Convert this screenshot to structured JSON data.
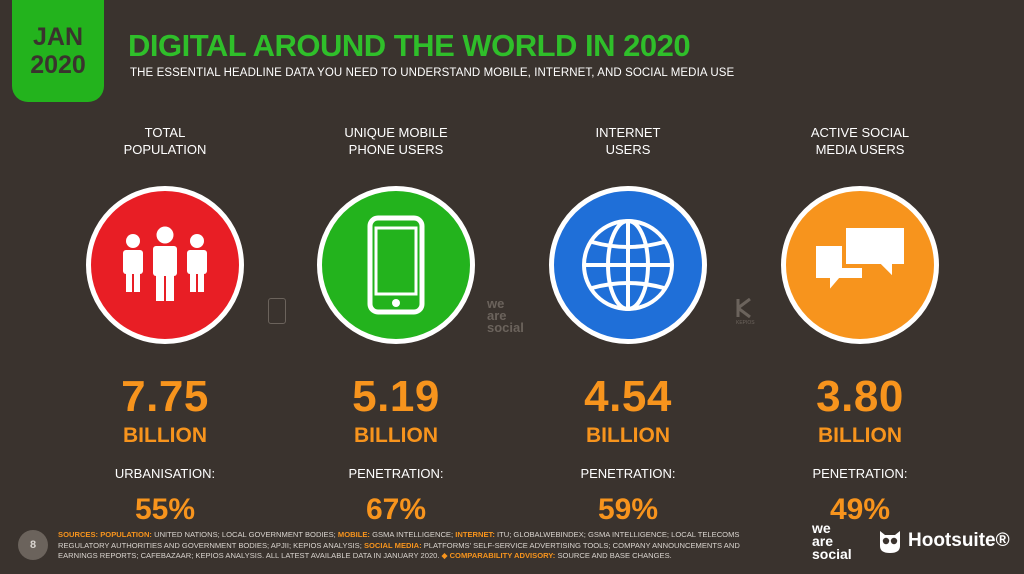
{
  "badge": {
    "month": "JAN",
    "year": "2020"
  },
  "header": {
    "title": "DIGITAL AROUND THE WORLD IN 2020",
    "subtitle": "THE ESSENTIAL HEADLINE DATA YOU NEED TO UNDERSTAND MOBILE, INTERNET, AND SOCIAL MEDIA USE"
  },
  "stats": [
    {
      "label_line1": "TOTAL",
      "label_line2": "POPULATION",
      "icon": "people-icon",
      "color": "#e81e25",
      "value": "7.75",
      "unit": "BILLION",
      "sub_label": "URBANISATION:",
      "sub_value": "55%"
    },
    {
      "label_line1": "UNIQUE MOBILE",
      "label_line2": "PHONE USERS",
      "icon": "mobile-phone-icon",
      "color": "#23b31d",
      "value": "5.19",
      "unit": "BILLION",
      "sub_label": "PENETRATION:",
      "sub_value": "67%"
    },
    {
      "label_line1": "INTERNET",
      "label_line2": "USERS",
      "icon": "globe-icon",
      "color": "#1f6fd8",
      "value": "4.54",
      "unit": "BILLION",
      "sub_label": "PENETRATION:",
      "sub_value": "59%"
    },
    {
      "label_line1": "ACTIVE SOCIAL",
      "label_line2": "MEDIA USERS",
      "icon": "chat-bubbles-icon",
      "color": "#f7941d",
      "value": "3.80",
      "unit": "BILLION",
      "sub_label": "PENETRATION:",
      "sub_value": "49%"
    }
  ],
  "footer": {
    "page_number": "8",
    "sources_label": "SOURCES:",
    "pop_label": "POPULATION:",
    "pop_text": " UNITED NATIONS; LOCAL GOVERNMENT BODIES; ",
    "mobile_label": "MOBILE:",
    "mobile_text": " GSMA INTELLIGENCE; ",
    "internet_label": "INTERNET:",
    "internet_text": " ITU; GLOBALWEBINDEX; GSMA INTELLIGENCE; LOCAL TELECOMS REGULATORY AUTHORITIES AND GOVERNMENT BODIES; APJII; KEPIOS ANALYSIS; ",
    "social_label": "SOCIAL MEDIA:",
    "social_text": " PLATFORMS' SELF-SERVICE ADVERTISING TOOLS; COMPANY ANNOUNCEMENTS AND EARNINGS REPORTS; CAFEBAZAAR; KEPIOS ANALYSIS. ALL LATEST AVAILABLE DATA IN JANUARY 2020. ",
    "advisory_label": "◆ COMPARABILITY ADVISORY:",
    "advisory_text": " SOURCE AND BASE CHANGES."
  },
  "watermarks": {
    "we": "we",
    "are": "are",
    "social": "social",
    "kepios": "KEPIOS"
  },
  "brands": {
    "we": "we",
    "are": "are",
    "social": "social",
    "hootsuite": "Hootsuite®"
  }
}
